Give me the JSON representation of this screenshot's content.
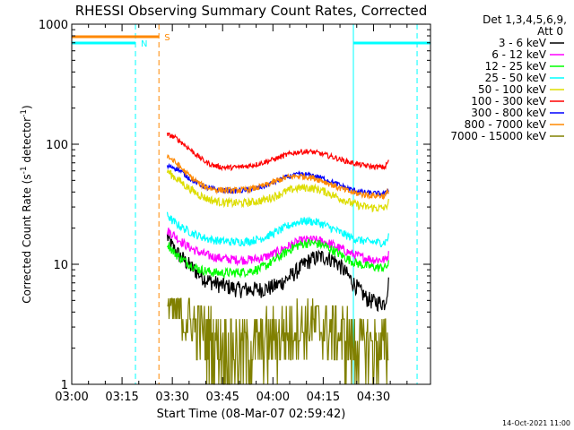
{
  "chart_data": {
    "type": "line",
    "title": "RHESSI Observing Summary Count Rates, Corrected",
    "xlabel": "Start Time (08-Mar-07 02:59:42)",
    "ylabel_main": "Corrected Count Rate (s",
    "ylabel_exp1": "-1",
    "ylabel_mid": " detector",
    "ylabel_exp2": "-1",
    "ylabel_end": ")",
    "yscale": "log",
    "ylim": [
      1,
      1000
    ],
    "xlim": [
      0,
      107
    ],
    "x_unit": "minutes after 03:00",
    "x_ticks": [
      {
        "value": 0,
        "label": "03:00"
      },
      {
        "value": 15,
        "label": "03:15"
      },
      {
        "value": 30,
        "label": "03:30"
      },
      {
        "value": 45,
        "label": "03:45"
      },
      {
        "value": 60,
        "label": "04:00"
      },
      {
        "value": 75,
        "label": "04:15"
      },
      {
        "value": 90,
        "label": "04:30"
      }
    ],
    "y_ticks": [
      {
        "value": 1,
        "label": "1"
      },
      {
        "value": 10,
        "label": "10"
      },
      {
        "value": 100,
        "label": "100"
      },
      {
        "value": 1000,
        "label": "1000"
      }
    ],
    "legend_header": [
      "Det 1,3,4,5,6,9,",
      "Att 0"
    ],
    "series": [
      {
        "name": "3 - 6 keV",
        "color": "#000000",
        "x": [
          28.5,
          30,
          32,
          34,
          36,
          38,
          40,
          42,
          44,
          46,
          48,
          50,
          52,
          54,
          56,
          58,
          60,
          62,
          64,
          66,
          68,
          70,
          72,
          74,
          76,
          78,
          80,
          82,
          84,
          86,
          88,
          90,
          92,
          93.5,
          94.5
        ],
        "values": [
          17,
          14,
          12,
          10.5,
          9.3,
          8.3,
          7.5,
          7.1,
          6.8,
          6.6,
          6.4,
          6.2,
          6.2,
          6.2,
          6.2,
          6.3,
          6.5,
          6.9,
          7.5,
          8.3,
          9.3,
          10.4,
          11.2,
          11.6,
          11.5,
          10.9,
          9.8,
          8.3,
          7.0,
          6.0,
          5.2,
          4.9,
          4.8,
          4.8,
          7
        ]
      },
      {
        "name": "6 - 12 keV",
        "color": "#ff00ff",
        "x": [
          28.5,
          30,
          32,
          34,
          36,
          38,
          40,
          42,
          44,
          46,
          48,
          50,
          52,
          54,
          56,
          58,
          60,
          62,
          64,
          66,
          68,
          70,
          72,
          74,
          76,
          78,
          80,
          82,
          84,
          86,
          88,
          90,
          92,
          93.5,
          94.5
        ],
        "values": [
          19,
          18,
          16,
          14.5,
          13.4,
          12.6,
          12,
          11.6,
          11.3,
          11.1,
          11,
          10.9,
          10.9,
          11,
          11.2,
          11.6,
          12.2,
          13,
          13.9,
          14.8,
          15.6,
          16,
          16,
          15.7,
          15.2,
          14.5,
          13.6,
          12.8,
          12.1,
          11.6,
          11.2,
          11,
          10.9,
          10.9,
          12
        ]
      },
      {
        "name": "12 - 25 keV",
        "color": "#00ff00",
        "x": [
          28.5,
          30,
          32,
          34,
          36,
          38,
          40,
          42,
          44,
          46,
          48,
          50,
          52,
          54,
          56,
          58,
          60,
          62,
          64,
          66,
          68,
          70,
          72,
          74,
          76,
          78,
          80,
          82,
          84,
          86,
          88,
          90,
          92,
          93.5,
          94.5
        ],
        "values": [
          15,
          13,
          11.5,
          10.5,
          9.7,
          9.1,
          8.8,
          8.6,
          8.5,
          8.5,
          8.5,
          8.6,
          8.7,
          8.9,
          9.2,
          9.8,
          10.6,
          11.6,
          12.7,
          13.8,
          14.6,
          15,
          15,
          14.7,
          14,
          13.1,
          12.1,
          11.2,
          10.5,
          10,
          9.7,
          9.5,
          9.4,
          9.4,
          10
        ]
      },
      {
        "name": "25 - 50 keV",
        "color": "#00ffff",
        "x": [
          28.5,
          30,
          32,
          34,
          36,
          38,
          40,
          42,
          44,
          46,
          48,
          50,
          52,
          54,
          56,
          58,
          60,
          62,
          64,
          66,
          68,
          70,
          72,
          74,
          76,
          78,
          80,
          82,
          84,
          86,
          88,
          90,
          92,
          93.5,
          94.5
        ],
        "values": [
          26,
          23,
          21,
          19.5,
          18.2,
          17.2,
          16.5,
          16,
          15.7,
          15.5,
          15.4,
          15.4,
          15.5,
          15.8,
          16.3,
          17,
          18,
          19.2,
          20.5,
          21.8,
          22.7,
          23,
          22.7,
          22,
          20.9,
          19.7,
          18.5,
          17.4,
          16.5,
          15.9,
          15.5,
          15.3,
          15.2,
          15.2,
          17
        ]
      },
      {
        "name": "50 - 100 keV",
        "color": "#dddd00",
        "x": [
          28.5,
          30,
          32,
          34,
          36,
          38,
          40,
          42,
          44,
          46,
          48,
          50,
          52,
          54,
          56,
          58,
          60,
          62,
          64,
          66,
          68,
          70,
          72,
          74,
          76,
          78,
          80,
          82,
          84,
          86,
          88,
          90,
          92,
          93.5,
          94.5
        ],
        "values": [
          60,
          55,
          50,
          45,
          41,
          38,
          35.5,
          34,
          33.2,
          32.7,
          32.4,
          32.4,
          32.6,
          33,
          33.7,
          34.8,
          36.4,
          38.4,
          40.5,
          42.3,
          43.3,
          43.5,
          43,
          41.7,
          39.8,
          37.6,
          35.5,
          33.6,
          32,
          30.8,
          30,
          29.6,
          29.4,
          29.4,
          33
        ]
      },
      {
        "name": "100 - 300 keV",
        "color": "#ff0000",
        "x": [
          28.5,
          30,
          32,
          34,
          36,
          38,
          40,
          42,
          44,
          46,
          48,
          50,
          52,
          54,
          56,
          58,
          60,
          62,
          64,
          66,
          68,
          70,
          72,
          74,
          76,
          78,
          80,
          82,
          84,
          86,
          88,
          90,
          92,
          93.5,
          94.5
        ],
        "values": [
          120,
          117,
          108,
          97,
          87,
          78,
          71,
          67,
          65,
          64,
          64,
          64.5,
          65.5,
          67,
          69,
          71.5,
          74.5,
          78,
          81.5,
          84.5,
          86.5,
          87,
          86,
          84,
          81,
          78,
          75,
          72,
          69.5,
          67.5,
          66,
          65,
          64.5,
          64.5,
          73
        ]
      },
      {
        "name": "300 - 800 keV",
        "color": "#0000ff",
        "x": [
          28.5,
          30,
          32,
          34,
          36,
          38,
          40,
          42,
          44,
          46,
          48,
          50,
          52,
          54,
          56,
          58,
          60,
          62,
          64,
          66,
          68,
          70,
          72,
          74,
          76,
          78,
          80,
          82,
          84,
          86,
          88,
          90,
          92,
          93.5,
          94.5
        ],
        "values": [
          65,
          65,
          61,
          55,
          50,
          46.5,
          44,
          42.5,
          41.5,
          41,
          40.8,
          41,
          41.5,
          42.3,
          43.5,
          45.3,
          47.7,
          50.5,
          53,
          55,
          56,
          55.8,
          54.8,
          53,
          50.6,
          48,
          45.5,
          43.2,
          41.5,
          40.3,
          39.5,
          39,
          38.8,
          38.8,
          42
        ]
      },
      {
        "name": "800 - 7000 keV",
        "color": "#ff8800",
        "x": [
          28.5,
          30,
          32,
          34,
          36,
          38,
          40,
          42,
          44,
          46,
          48,
          50,
          52,
          54,
          56,
          58,
          60,
          62,
          64,
          66,
          68,
          70,
          72,
          74,
          76,
          78,
          80,
          82,
          84,
          86,
          88,
          90,
          92,
          93.5,
          94.5
        ],
        "values": [
          80,
          74,
          66,
          58,
          52,
          47,
          44,
          42.5,
          41.7,
          41.3,
          41.2,
          41.4,
          41.9,
          42.7,
          44,
          45.8,
          48,
          50.5,
          52.5,
          54,
          54.3,
          53.8,
          52.5,
          50.5,
          48,
          45.5,
          43,
          41,
          39.5,
          38.5,
          37.8,
          37.4,
          37.2,
          37.2,
          41
        ]
      },
      {
        "name": "7000 - 15000 keV",
        "color": "#808000",
        "x": [
          28.5,
          30,
          32,
          34,
          36,
          38,
          40,
          42,
          44,
          46,
          48,
          50,
          52,
          54,
          56,
          58,
          60,
          62,
          64,
          66,
          68,
          70,
          72,
          74,
          76,
          78,
          80,
          82,
          84,
          86,
          88,
          90,
          92,
          93.5,
          94.5
        ],
        "values": [
          5,
          4.5,
          4,
          3.5,
          3,
          2.6,
          2.3,
          2.1,
          2,
          1.9,
          1.8,
          1.8,
          1.8,
          1.8,
          1.9,
          2,
          2.1,
          2.3,
          2.5,
          2.7,
          2.9,
          3,
          3,
          2.9,
          2.7,
          2.5,
          2.3,
          2.1,
          1.9,
          1.8,
          1.7,
          1.7,
          1.7,
          1.7,
          2
        ]
      }
    ],
    "flags": [
      {
        "name": "N",
        "color": "#00ffff",
        "segments": [
          [
            0,
            19
          ],
          [
            84,
            107
          ]
        ]
      },
      {
        "name": "S",
        "color": "#ff8800",
        "segments": [
          [
            0,
            26
          ]
        ]
      }
    ],
    "vlines": [
      {
        "x": 0,
        "color": "#00ffff",
        "style": "solid"
      },
      {
        "x": 19,
        "color": "#00ffff",
        "style": "dashed"
      },
      {
        "x": 26,
        "color": "#ff8800",
        "style": "dashed"
      },
      {
        "x": 84,
        "color": "#00ffff",
        "style": "solid"
      },
      {
        "x": 103,
        "color": "#00ffff",
        "style": "dashed"
      }
    ],
    "footer_date": "14-Oct-2021 11:00"
  }
}
